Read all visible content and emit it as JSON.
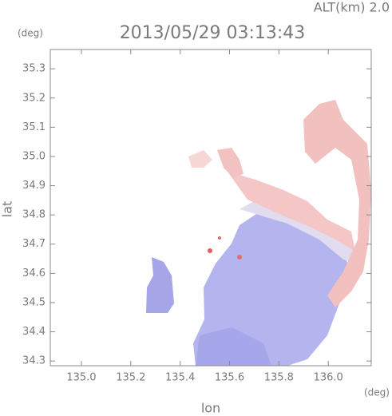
{
  "chart_data": {
    "type": "map",
    "title": "2013/05/29 03:13:43",
    "subtitle": "ALT(km) 2.0",
    "xlabel": "lon",
    "ylabel": "lat",
    "x_unit": "(deg)",
    "y_unit": "(deg)",
    "xlim": [
      134.874,
      136.174
    ],
    "ylim": [
      34.284,
      35.366
    ],
    "xticks": [
      {
        "value": 135,
        "label": "135.0"
      },
      135.2,
      135.4,
      135.6,
      135.8,
      {
        "value": 136,
        "label": "136.0"
      }
    ],
    "yticks": [
      34.3,
      34.4,
      34.5,
      34.6,
      34.7,
      34.8,
      34.9,
      {
        "value": 35,
        "label": "35.0"
      },
      35.1,
      35.2,
      35.3
    ]
  }
}
